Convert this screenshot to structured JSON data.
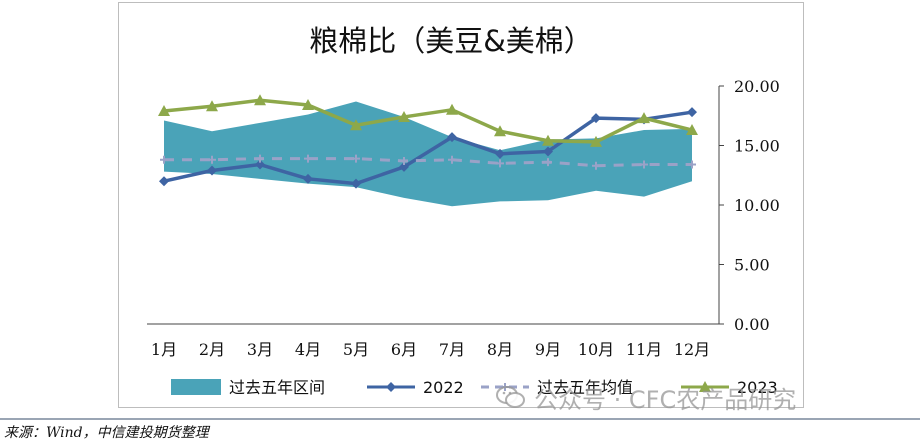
{
  "chart_data": {
    "type": "line",
    "title": "粮棉比（美豆&美棉）",
    "categories": [
      "1月",
      "2月",
      "3月",
      "4月",
      "5月",
      "6月",
      "7月",
      "8月",
      "9月",
      "10月",
      "11月",
      "12月"
    ],
    "y_ticks": [
      "0.00",
      "5.00",
      "10.00",
      "15.00",
      "20.00"
    ],
    "ylim": [
      0,
      20
    ],
    "y_axis_side": "right",
    "grid": false,
    "legend_position": "bottom",
    "range_band": {
      "name": "过去五年区间",
      "color": "#4aa3b8",
      "low": [
        12.8,
        12.6,
        12.2,
        11.8,
        11.5,
        10.6,
        9.9,
        10.3,
        10.4,
        11.2,
        10.7,
        12.0
      ],
      "high": [
        17.1,
        16.2,
        16.9,
        17.6,
        18.7,
        17.4,
        15.7,
        14.6,
        15.5,
        15.6,
        16.3,
        16.4
      ]
    },
    "series": [
      {
        "name": "2022",
        "color": "#3e64a3",
        "marker": "diamond",
        "values": [
          12.0,
          12.9,
          13.4,
          12.2,
          11.8,
          13.2,
          15.7,
          14.3,
          14.5,
          17.3,
          17.2,
          17.8
        ]
      },
      {
        "name": "过去五年均值",
        "color": "#9aa2c7",
        "marker": "cross",
        "dashed": true,
        "values": [
          13.8,
          13.8,
          13.9,
          13.9,
          13.9,
          13.7,
          13.8,
          13.5,
          13.6,
          13.3,
          13.4,
          13.4
        ]
      },
      {
        "name": "2023",
        "color": "#8da84a",
        "marker": "triangle",
        "values": [
          17.9,
          18.3,
          18.8,
          18.4,
          16.7,
          17.4,
          18.0,
          16.2,
          15.4,
          15.3,
          17.3,
          16.3
        ]
      }
    ]
  },
  "watermark": {
    "icon": "wechat-icon",
    "text": "公众号 · CFC农产品研究"
  },
  "source_note": "来源：Wind，中信建投期货整理"
}
